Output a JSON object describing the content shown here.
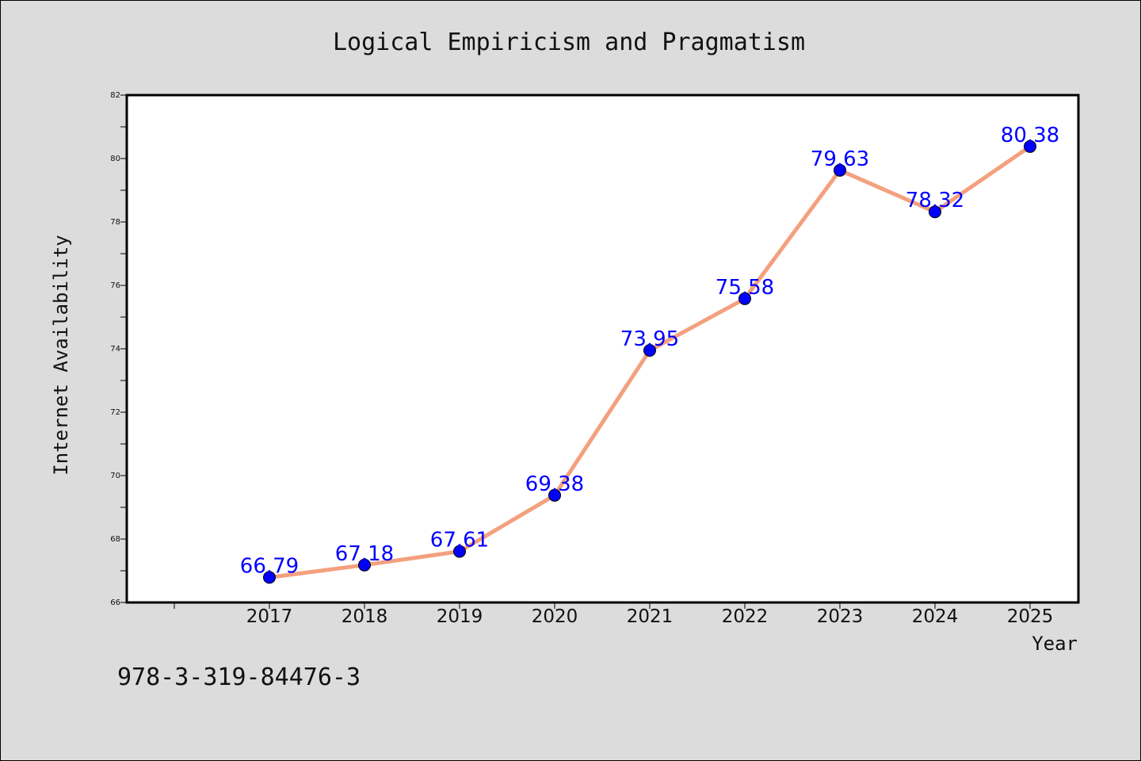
{
  "chart_data": {
    "type": "line",
    "title": "Logical Empiricism and Pragmatism",
    "xlabel": "Year",
    "ylabel": "Internet Availability",
    "x": [
      "2017",
      "2018",
      "2019",
      "2020",
      "2021",
      "2022",
      "2023",
      "2024",
      "2025"
    ],
    "series": [
      {
        "values": [
          66.79,
          67.18,
          67.61,
          69.38,
          73.95,
          75.58,
          79.63,
          78.32,
          80.38
        ],
        "labels": [
          "66.79",
          "67.18",
          "67.61",
          "69.38",
          "73.95",
          "75.58",
          "79.63",
          "78.32",
          "80.38"
        ],
        "line_color": "#f4a07e",
        "marker_color": "#0000ff"
      }
    ],
    "ylim": [
      66,
      82
    ],
    "yticks": [
      "66",
      "68",
      "70",
      "72",
      "74",
      "76",
      "78",
      "80",
      "82"
    ],
    "grid": false,
    "legend": "none"
  },
  "footnote": "978-3-319-84476-3"
}
